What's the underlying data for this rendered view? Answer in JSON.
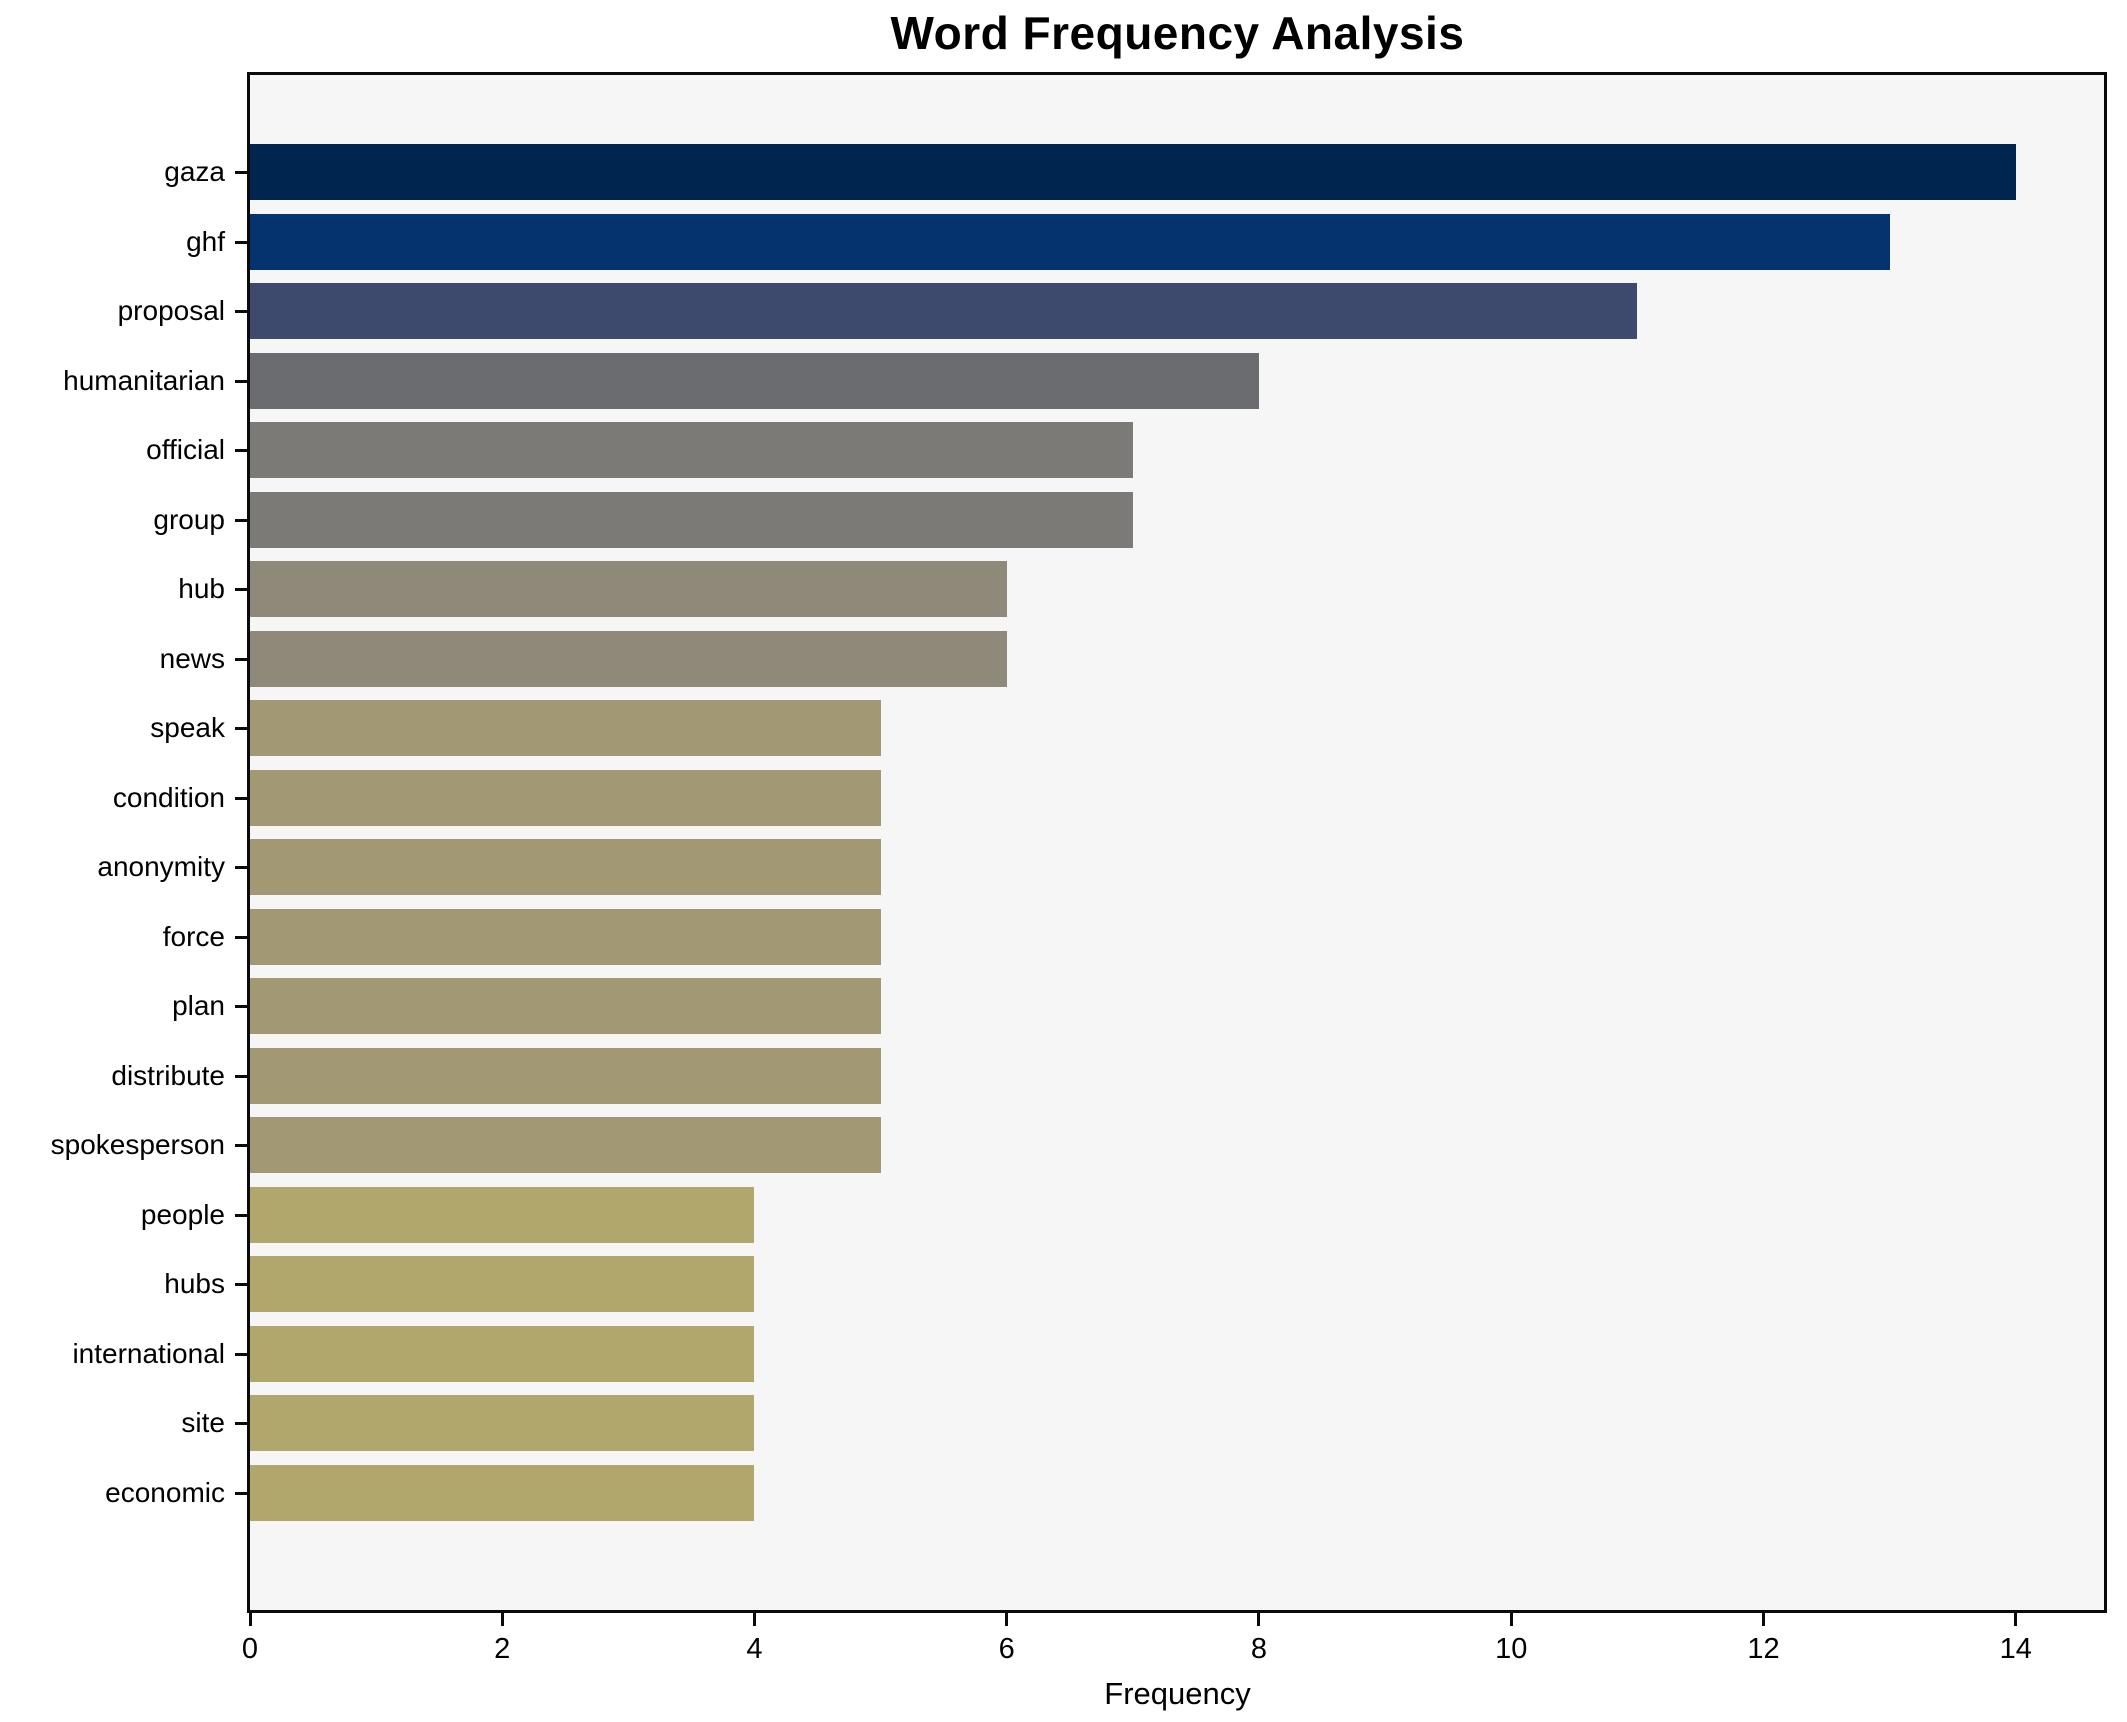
{
  "title": "Word Frequency Analysis",
  "x_axis_label": "Frequency",
  "chart_data": {
    "type": "bar",
    "orientation": "horizontal",
    "title": "Word Frequency Analysis",
    "xlabel": "Frequency",
    "ylabel": "",
    "grid": false,
    "legend": "none",
    "plot_background": "#f6f6f7",
    "figure_background": "#ffffff",
    "xlim": [
      0,
      14.7
    ],
    "xticks": [
      0,
      2,
      4,
      6,
      8,
      10,
      12,
      14
    ],
    "categories": [
      "gaza",
      "ghf",
      "proposal",
      "humanitarian",
      "official",
      "group",
      "hub",
      "news",
      "speak",
      "condition",
      "anonymity",
      "force",
      "plan",
      "distribute",
      "spokesperson",
      "people",
      "hubs",
      "international",
      "site",
      "economic"
    ],
    "values": [
      14,
      13,
      11,
      8,
      7,
      7,
      6,
      6,
      5,
      5,
      5,
      5,
      5,
      5,
      5,
      4,
      4,
      4,
      4,
      4
    ],
    "bar_colors": [
      "#00254f",
      "#04336e",
      "#3d4a6e",
      "#6b6c70",
      "#7b7a77",
      "#7b7a77",
      "#8e8979",
      "#8e8979",
      "#a29974",
      "#a29974",
      "#a29974",
      "#a29974",
      "#a29974",
      "#a29974",
      "#a29974",
      "#b1a76c",
      "#b1a76c",
      "#b1a76c",
      "#b1a76c",
      "#b1a76c"
    ]
  }
}
